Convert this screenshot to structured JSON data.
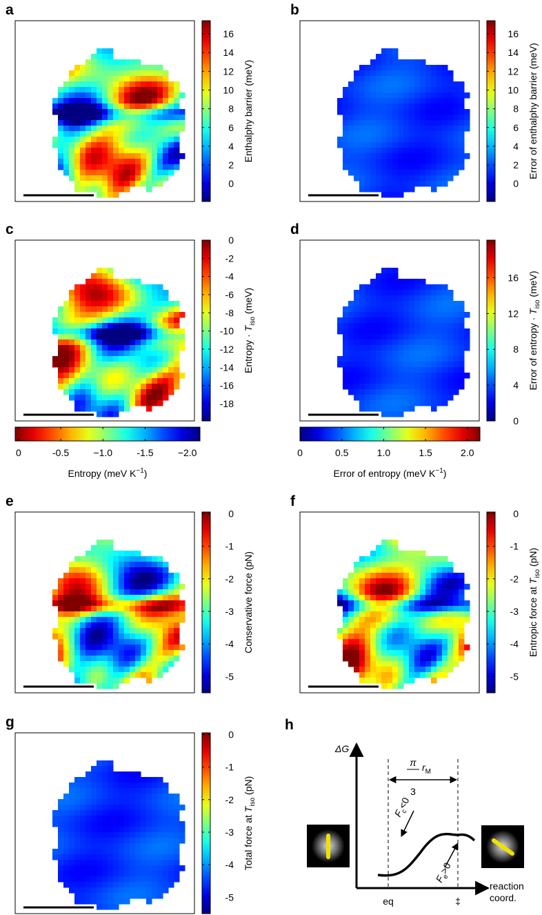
{
  "chart_data": [
    {
      "type": "heatmap",
      "label": "a",
      "colormap": "jet",
      "colorbars": [
        {
          "orientation": "vertical",
          "lim": [
            -1.9,
            17.4
          ],
          "ticks": [
            0,
            2,
            4,
            6,
            8,
            10,
            12,
            14,
            16
          ],
          "label": [
            {
              "text": "Enthalphy barrier (meV)"
            }
          ]
        }
      ]
    },
    {
      "type": "heatmap",
      "label": "b",
      "colormap": "jet",
      "colorbars": [
        {
          "orientation": "vertical",
          "lim": [
            -1.9,
            17.4
          ],
          "ticks": [
            0,
            2,
            4,
            6,
            8,
            10,
            12,
            14,
            16
          ],
          "label": [
            {
              "text": "Error of enthalphy barrier (meV)"
            }
          ]
        }
      ]
    },
    {
      "type": "heatmap",
      "label": "c",
      "colormap": "jet",
      "colorbars": [
        {
          "orientation": "vertical",
          "lim": [
            -19.9,
            0
          ],
          "ticks": [
            0,
            -2,
            -4,
            -6,
            -8,
            -10,
            -12,
            -14,
            -16,
            -18
          ],
          "label": [
            {
              "text": "Entropy · "
            },
            {
              "text": "T",
              "style": "italic"
            },
            {
              "text": "iso",
              "style": "sub"
            },
            {
              "text": " (meV)"
            }
          ]
        },
        {
          "orientation": "horizontal",
          "lim": [
            0.04,
            -2.15
          ],
          "ticks": [
            0,
            -0.5,
            {
              "value": -1,
              "label": "−1.0"
            },
            -1.5,
            {
              "value": -2,
              "label": "−2.0"
            }
          ],
          "label": [
            {
              "text": "Entropy (meV K"
            },
            {
              "text": "−1",
              "style": "sup"
            },
            {
              "text": ")"
            }
          ]
        }
      ]
    },
    {
      "type": "heatmap",
      "label": "d",
      "colormap": "jet",
      "colorbars": [
        {
          "orientation": "vertical",
          "lim": [
            0,
            20.2
          ],
          "ticks": [
            0,
            4,
            8,
            12,
            16
          ],
          "label": [
            {
              "text": "Error of entropy · "
            },
            {
              "text": "T",
              "style": "italic"
            },
            {
              "text": "iso",
              "style": "sub"
            },
            {
              "text": " (meV)"
            }
          ]
        },
        {
          "orientation": "horizontal",
          "lim": [
            0,
            2.15
          ],
          "ticks": [
            0,
            0.5,
            {
              "value": 1,
              "label": "1.0"
            },
            1.5,
            {
              "value": 2,
              "label": "2.0"
            }
          ],
          "label": [
            {
              "text": "Error of entropy (meV K"
            },
            {
              "text": "−1",
              "style": "sup"
            },
            {
              "text": ")"
            }
          ]
        }
      ]
    },
    {
      "type": "heatmap",
      "label": "e",
      "colormap": "jet",
      "colorbars": [
        {
          "orientation": "vertical",
          "lim": [
            -5.5,
            0.05
          ],
          "ticks": [
            0,
            -1,
            -2,
            -3,
            -4,
            -5
          ],
          "label": [
            {
              "text": "Conservative force (pN)"
            }
          ]
        }
      ]
    },
    {
      "type": "heatmap",
      "label": "f",
      "colormap": "jet",
      "colorbars": [
        {
          "orientation": "vertical",
          "lim": [
            -5.5,
            0.05
          ],
          "ticks": [
            0,
            -1,
            -2,
            -3,
            -4,
            -5
          ],
          "label": [
            {
              "text": "Entropic force at "
            },
            {
              "text": "T",
              "style": "italic"
            },
            {
              "text": "iso",
              "style": "sub"
            },
            {
              "text": " (pN)"
            }
          ]
        }
      ]
    },
    {
      "type": "heatmap",
      "label": "g",
      "colormap": "jet",
      "colorbars": [
        {
          "orientation": "vertical",
          "lim": [
            -5.5,
            0.05
          ],
          "ticks": [
            0,
            -1,
            -2,
            -3,
            -4,
            -5
          ],
          "label": [
            {
              "text": "Total force at "
            },
            {
              "text": "T",
              "style": "italic"
            },
            {
              "text": "iso",
              "style": "sub"
            },
            {
              "text": " (pN)"
            }
          ]
        }
      ]
    }
  ],
  "schematic": {
    "label": "h",
    "y_axis": "ΔG",
    "pi": "π",
    "three": "3",
    "r": "r",
    "r_sub": "M",
    "fc": "F",
    "fc_sub": "c",
    "fc_rel": "<0",
    "fe": "F",
    "fe_sub": "e",
    "fe_rel": ">0",
    "x_axis": [
      "reaction",
      "coord."
    ],
    "eq": "eq",
    "ts": "‡"
  }
}
